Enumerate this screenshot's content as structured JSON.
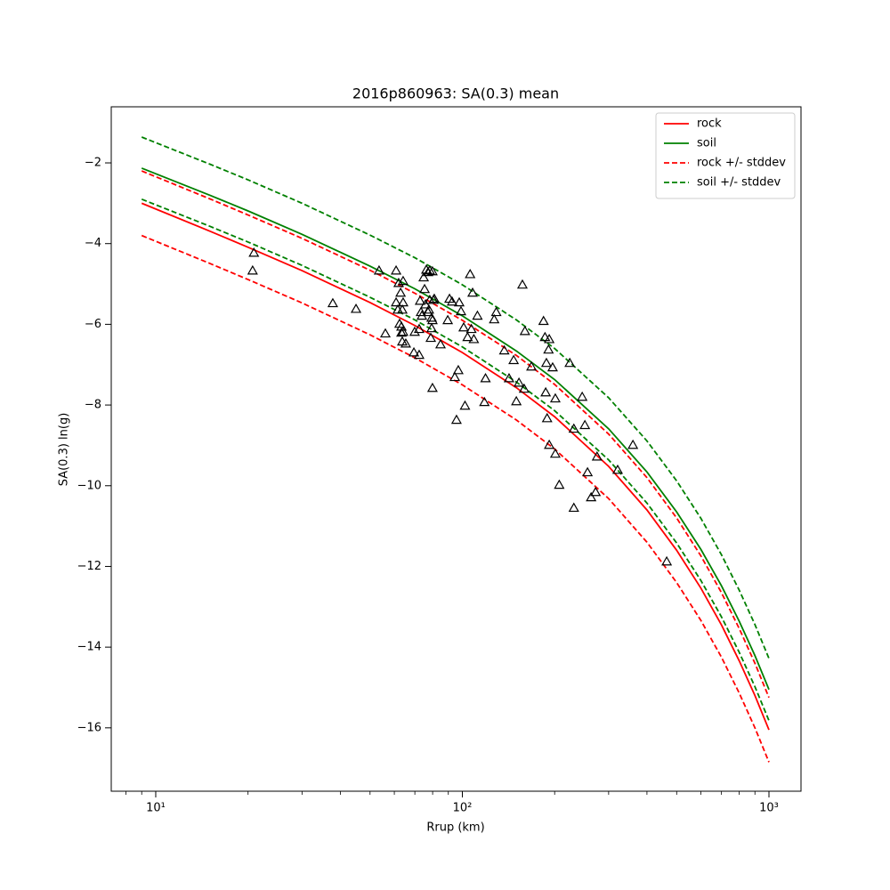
{
  "chart_data": {
    "type": "line",
    "title": "2016p860963: SA(0.3) mean",
    "xlabel": "Rrup (km)",
    "ylabel": "SA(0.3) ln(g)",
    "xscale": "log",
    "xlim": [
      7.16,
      1272
    ],
    "ylim": [
      -17.57,
      -0.61
    ],
    "xticks": [
      {
        "value": 10,
        "label": "10¹"
      },
      {
        "value": 100,
        "label": "10²"
      },
      {
        "value": 1000,
        "label": "10³"
      }
    ],
    "xminorticks": [
      8,
      9,
      20,
      30,
      40,
      50,
      60,
      70,
      80,
      90,
      200,
      300,
      400,
      500,
      600,
      700,
      800,
      900
    ],
    "yticks": [
      {
        "value": -2,
        "label": "−2"
      },
      {
        "value": -4,
        "label": "−4"
      },
      {
        "value": -6,
        "label": "−6"
      },
      {
        "value": -8,
        "label": "−8"
      },
      {
        "value": -10,
        "label": "−10"
      },
      {
        "value": -12,
        "label": "−12"
      },
      {
        "value": -14,
        "label": "−14"
      },
      {
        "value": -16,
        "label": "−16"
      }
    ],
    "legend": "upper right",
    "x": [
      9,
      15,
      20,
      30,
      50,
      70,
      100,
      150,
      200,
      300,
      400,
      500,
      600,
      700,
      800,
      900,
      1000
    ],
    "series": [
      {
        "name": "rock",
        "color": "#ff0000",
        "dash": false,
        "values": [
          -3.0,
          -3.69,
          -4.09,
          -4.67,
          -5.46,
          -6.03,
          -6.7,
          -7.57,
          -8.29,
          -9.52,
          -10.6,
          -11.6,
          -12.54,
          -13.45,
          -14.34,
          -15.2,
          -16.05
        ]
      },
      {
        "name": "soil",
        "color": "#008000",
        "dash": false,
        "values": [
          -2.13,
          -2.8,
          -3.19,
          -3.77,
          -4.56,
          -5.12,
          -5.79,
          -6.66,
          -7.37,
          -8.59,
          -9.66,
          -10.65,
          -11.58,
          -12.48,
          -13.36,
          -14.21,
          -15.05
        ]
      },
      {
        "name": "rock +/- stddev",
        "color": "#ff0000",
        "dash": true,
        "values": [
          -2.2,
          -2.89,
          -3.29,
          -3.87,
          -4.66,
          -5.23,
          -5.9,
          -6.77,
          -7.49,
          -8.72,
          -9.8,
          -10.8,
          -11.74,
          -12.65,
          -13.54,
          -14.4,
          -15.25
        ]
      },
      {
        "name": "soil +/- stddev",
        "color": "#008000",
        "dash": true,
        "values": [
          -1.36,
          -2.03,
          -2.42,
          -3.0,
          -3.79,
          -4.35,
          -5.02,
          -5.89,
          -6.6,
          -7.82,
          -8.89,
          -9.88,
          -10.81,
          -11.71,
          -12.59,
          -13.44,
          -14.28
        ]
      },
      {
        "color": "#ff0000",
        "dash": true,
        "values": [
          -3.8,
          -4.49,
          -4.89,
          -5.47,
          -6.26,
          -6.83,
          -7.5,
          -8.37,
          -9.09,
          -10.32,
          -11.4,
          -12.4,
          -13.34,
          -14.25,
          -15.14,
          -16.0,
          -16.85
        ]
      },
      {
        "color": "#008000",
        "dash": true,
        "values": [
          -2.9,
          -3.57,
          -3.96,
          -4.54,
          -5.33,
          -5.89,
          -6.56,
          -7.43,
          -8.14,
          -9.36,
          -10.43,
          -11.42,
          -12.35,
          -13.25,
          -14.13,
          -14.98,
          -15.82
        ]
      }
    ],
    "scatter": {
      "color": "#000000",
      "marker": "triangle",
      "x": [
        20.9,
        20.7,
        37.8,
        45.0,
        53.5,
        56.1,
        60.8,
        60.8,
        61.6,
        62.0,
        62.4,
        62.9,
        63.3,
        63.3,
        63.7,
        64.1,
        64.1,
        64.1,
        63.7,
        65.4,
        69.5,
        72.3,
        69.9,
        72.3,
        73.3,
        72.8,
        73.8,
        74.8,
        75.3,
        75.8,
        76.3,
        77.3,
        77.8,
        77.3,
        78.3,
        78.9,
        79.4,
        79.4,
        79.9,
        79.9,
        80.5,
        81.0,
        79.9,
        84.9,
        89.6,
        90.8,
        92.6,
        94.5,
        95.7,
        97.0,
        97.7,
        99.0,
        101,
        102,
        104,
        106,
        107,
        108,
        109,
        112,
        118,
        119,
        127,
        129,
        137,
        142,
        147,
        150,
        153,
        157,
        159,
        160,
        168,
        184,
        186,
        187,
        188,
        189,
        192,
        192,
        191,
        197,
        201,
        201,
        207,
        224,
        231,
        231,
        246,
        251,
        256,
        263,
        272,
        275,
        321,
        360,
        464,
        78.3
      ],
      "y": [
        -4.23,
        -4.67,
        -5.48,
        -5.62,
        -4.67,
        -6.23,
        -4.67,
        -5.46,
        -5.64,
        -4.98,
        -5.99,
        -5.22,
        -6.06,
        -6.21,
        -5.64,
        -4.93,
        -5.46,
        -6.19,
        -6.43,
        -6.48,
        -6.7,
        -6.76,
        -6.19,
        -6.12,
        -5.7,
        -5.42,
        -5.79,
        -4.84,
        -5.13,
        -5.51,
        -4.65,
        -5.7,
        -5.64,
        -4.71,
        -5.4,
        -6.34,
        -5.84,
        -6.1,
        -4.69,
        -5.9,
        -5.4,
        -5.37,
        -7.58,
        -6.5,
        -5.9,
        -5.37,
        -5.44,
        -7.31,
        -8.37,
        -7.14,
        -5.46,
        -5.68,
        -6.08,
        -8.02,
        -6.32,
        -4.76,
        -6.12,
        -5.22,
        -6.37,
        -5.79,
        -7.93,
        -7.34,
        -5.88,
        -5.7,
        -6.65,
        -7.34,
        -6.89,
        -7.91,
        -7.45,
        -5.02,
        -7.6,
        -6.17,
        -7.05,
        -5.92,
        -6.32,
        -7.69,
        -6.96,
        -8.33,
        -8.99,
        -6.37,
        -6.63,
        -7.07,
        -7.84,
        -9.21,
        -9.98,
        -6.96,
        -8.59,
        -10.55,
        -7.8,
        -8.5,
        -9.67,
        -10.29,
        -10.16,
        -9.28,
        -9.61,
        -8.99,
        -11.88,
        -4.67
      ]
    }
  }
}
